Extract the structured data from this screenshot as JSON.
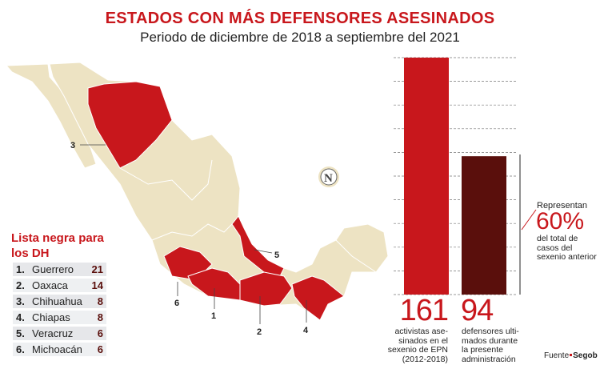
{
  "title": "ESTADOS CON MÁS DEFENSORES ASESINADOS",
  "subtitle": "Periodo de diciembre de 2018 a septiembre del 2021",
  "colors": {
    "accent": "#c8171c",
    "dark_bar": "#5a0f0c",
    "map_land": "#ede3c3",
    "map_highlight": "#c8171c"
  },
  "list": {
    "title": "Lista negra para los DH",
    "items": [
      {
        "rank": "1.",
        "state": "Guerrero",
        "value": "21"
      },
      {
        "rank": "2.",
        "state": "Oaxaca",
        "value": "14"
      },
      {
        "rank": "3.",
        "state": "Chihuahua",
        "value": "8"
      },
      {
        "rank": "4.",
        "state": "Chiapas",
        "value": "8"
      },
      {
        "rank": "5.",
        "state": "Veracruz",
        "value": "6"
      },
      {
        "rank": "6.",
        "state": "Michoacán",
        "value": "6"
      }
    ]
  },
  "map": {
    "logo_letter": "N",
    "labels": [
      "1",
      "2",
      "3",
      "4",
      "5",
      "6"
    ]
  },
  "chart_data": {
    "type": "bar",
    "categories": [
      "activistas asesinados en el sexenio de EPN (2012-2018)",
      "defensores ultimados durante la presente administración"
    ],
    "values": [
      161,
      94
    ],
    "value_labels": [
      "161",
      "94"
    ],
    "captions": [
      [
        "activistas ase-",
        "sinados en el",
        "sexenio de EPN",
        "(2012-2018)"
      ],
      [
        "defensores ulti-",
        "mados durante",
        "la presente",
        "administración"
      ]
    ],
    "ylim": [
      0,
      161
    ],
    "grid": true,
    "annotation": {
      "pre": "Representan",
      "value": "60%",
      "post": "del total de casos del sexenio anterior"
    }
  },
  "source": {
    "label": "Fuente",
    "name": "Segob"
  }
}
